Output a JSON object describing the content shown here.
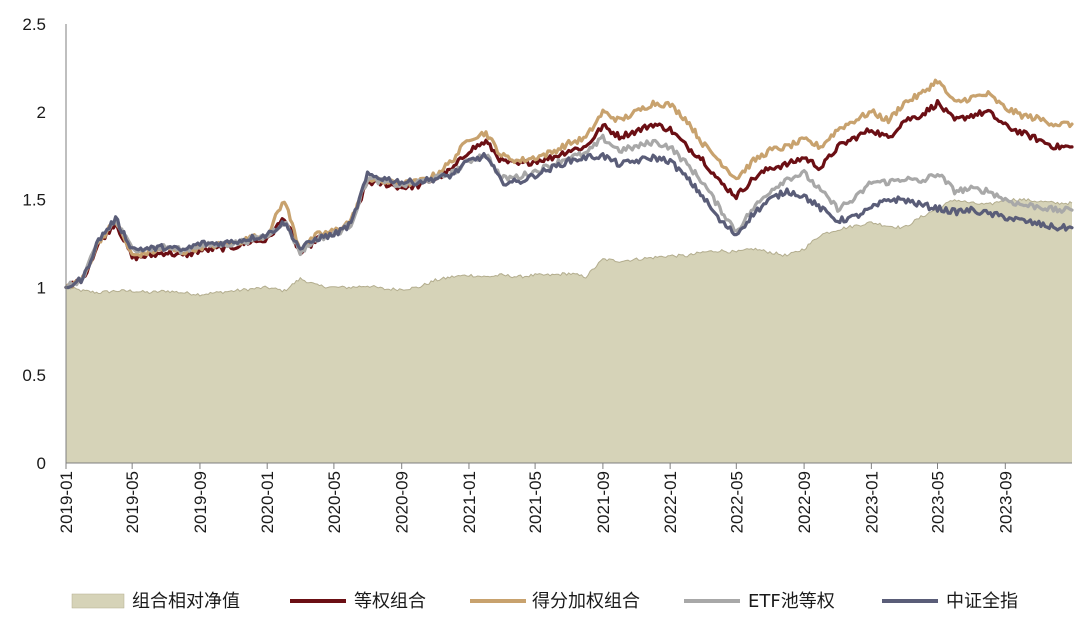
{
  "chart_data": {
    "type": "line",
    "title": "",
    "xlabel": "",
    "ylabel": "",
    "ylim": [
      0,
      2.5
    ],
    "yticks": [
      "0",
      "0.5",
      "1",
      "1.5",
      "2",
      "2.5"
    ],
    "xticks": [
      "2019-01",
      "2019-05",
      "2019-09",
      "2020-01",
      "2020-05",
      "2020-09",
      "2021-01",
      "2021-05",
      "2021-09",
      "2022-01",
      "2022-05",
      "2022-09",
      "2023-01",
      "2023-05",
      "2023-09"
    ],
    "grid": false,
    "legend_position": "bottom",
    "x_dates": [
      "2019-01",
      "2019-02",
      "2019-03",
      "2019-04",
      "2019-05",
      "2019-06",
      "2019-07",
      "2019-08",
      "2019-09",
      "2019-10",
      "2019-11",
      "2019-12",
      "2020-01",
      "2020-02",
      "2020-03",
      "2020-04",
      "2020-05",
      "2020-06",
      "2020-07",
      "2020-08",
      "2020-09",
      "2020-10",
      "2020-11",
      "2020-12",
      "2021-01",
      "2021-02",
      "2021-03",
      "2021-04",
      "2021-05",
      "2021-06",
      "2021-07",
      "2021-08",
      "2021-09",
      "2021-10",
      "2021-11",
      "2021-12",
      "2022-01",
      "2022-02",
      "2022-03",
      "2022-04",
      "2022-05",
      "2022-06",
      "2022-07",
      "2022-08",
      "2022-09",
      "2022-10",
      "2022-11",
      "2022-12",
      "2023-01",
      "2023-02",
      "2023-03",
      "2023-04",
      "2023-05",
      "2023-06",
      "2023-07",
      "2023-08",
      "2023-09",
      "2023-10",
      "2023-11",
      "2023-12"
    ],
    "series": [
      {
        "name": "组合相对净值",
        "kind": "area",
        "color": "#d6d3b8",
        "line_color": "#b3ad8e",
        "values": [
          1.0,
          0.98,
          0.97,
          0.98,
          0.98,
          0.97,
          0.98,
          0.97,
          0.96,
          0.97,
          0.98,
          0.99,
          1.0,
          0.98,
          1.05,
          1.01,
          1.0,
          1.0,
          1.01,
          0.99,
          0.99,
          1.0,
          1.04,
          1.06,
          1.07,
          1.06,
          1.07,
          1.06,
          1.07,
          1.07,
          1.08,
          1.06,
          1.16,
          1.15,
          1.16,
          1.17,
          1.18,
          1.18,
          1.2,
          1.21,
          1.2,
          1.22,
          1.2,
          1.18,
          1.22,
          1.3,
          1.33,
          1.35,
          1.37,
          1.35,
          1.34,
          1.4,
          1.45,
          1.5,
          1.48,
          1.47,
          1.5,
          1.5,
          1.49,
          1.48
        ]
      },
      {
        "name": "等权组合",
        "kind": "line",
        "color": "#6b0f14",
        "values": [
          1.0,
          1.05,
          1.25,
          1.37,
          1.17,
          1.18,
          1.2,
          1.18,
          1.21,
          1.22,
          1.23,
          1.26,
          1.27,
          1.4,
          1.19,
          1.28,
          1.3,
          1.36,
          1.6,
          1.59,
          1.57,
          1.58,
          1.62,
          1.67,
          1.78,
          1.83,
          1.72,
          1.7,
          1.72,
          1.74,
          1.78,
          1.8,
          1.92,
          1.86,
          1.89,
          1.93,
          1.9,
          1.8,
          1.73,
          1.6,
          1.52,
          1.62,
          1.68,
          1.7,
          1.74,
          1.68,
          1.8,
          1.85,
          1.9,
          1.85,
          1.95,
          1.98,
          2.05,
          1.95,
          1.98,
          2.0,
          1.92,
          1.88,
          1.84,
          1.8
        ]
      },
      {
        "name": "得分加权组合",
        "kind": "line",
        "color": "#c8a26e",
        "values": [
          1.0,
          1.05,
          1.26,
          1.38,
          1.18,
          1.2,
          1.22,
          1.2,
          1.23,
          1.24,
          1.25,
          1.28,
          1.3,
          1.5,
          1.21,
          1.3,
          1.32,
          1.38,
          1.62,
          1.6,
          1.59,
          1.6,
          1.64,
          1.72,
          1.85,
          1.88,
          1.75,
          1.72,
          1.74,
          1.77,
          1.82,
          1.85,
          2.0,
          1.95,
          2.0,
          2.05,
          2.04,
          1.95,
          1.82,
          1.72,
          1.62,
          1.72,
          1.78,
          1.8,
          1.84,
          1.8,
          1.9,
          1.95,
          2.0,
          1.95,
          2.05,
          2.1,
          2.18,
          2.05,
          2.08,
          2.1,
          2.02,
          1.98,
          1.96,
          1.93
        ]
      },
      {
        "name": "ETF池等权",
        "kind": "line",
        "color": "#a8a8a8",
        "values": [
          1.0,
          1.05,
          1.27,
          1.38,
          1.22,
          1.22,
          1.23,
          1.21,
          1.24,
          1.24,
          1.25,
          1.27,
          1.29,
          1.38,
          1.2,
          1.28,
          1.3,
          1.36,
          1.62,
          1.6,
          1.58,
          1.6,
          1.62,
          1.65,
          1.72,
          1.76,
          1.62,
          1.63,
          1.66,
          1.7,
          1.74,
          1.76,
          1.85,
          1.78,
          1.8,
          1.83,
          1.8,
          1.7,
          1.6,
          1.45,
          1.32,
          1.45,
          1.55,
          1.62,
          1.65,
          1.55,
          1.45,
          1.5,
          1.6,
          1.6,
          1.62,
          1.6,
          1.65,
          1.55,
          1.56,
          1.55,
          1.5,
          1.47,
          1.46,
          1.44
        ]
      },
      {
        "name": "中证全指",
        "kind": "line",
        "color": "#5a5d78",
        "values": [
          1.0,
          1.05,
          1.27,
          1.39,
          1.22,
          1.22,
          1.23,
          1.21,
          1.25,
          1.25,
          1.26,
          1.28,
          1.3,
          1.37,
          1.22,
          1.28,
          1.3,
          1.36,
          1.64,
          1.62,
          1.6,
          1.6,
          1.62,
          1.64,
          1.72,
          1.75,
          1.6,
          1.6,
          1.64,
          1.68,
          1.72,
          1.74,
          1.75,
          1.7,
          1.72,
          1.74,
          1.72,
          1.62,
          1.52,
          1.38,
          1.3,
          1.42,
          1.5,
          1.55,
          1.52,
          1.45,
          1.38,
          1.4,
          1.45,
          1.5,
          1.5,
          1.47,
          1.45,
          1.43,
          1.44,
          1.42,
          1.4,
          1.38,
          1.36,
          1.34
        ]
      }
    ]
  }
}
